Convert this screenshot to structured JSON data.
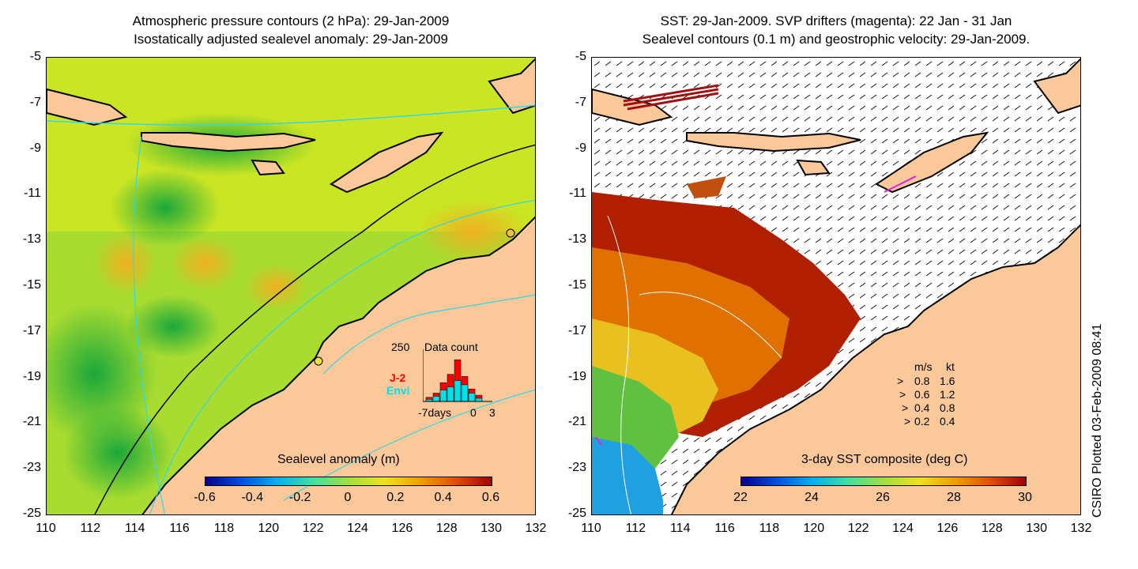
{
  "left_panel": {
    "title_line1": "Atmospheric pressure contours (2 hPa): 29-Jan-2009",
    "title_line2": "Isostatically adjusted sealevel anomaly: 29-Jan-2009",
    "colorbar_label": "Sealevel anomaly (m)",
    "colorbar_ticks": [
      "-0.6",
      "-0.4",
      "-0.2",
      "0",
      "0.2",
      "0.4",
      "0.6"
    ],
    "inset": {
      "title": "Data count",
      "max_label": "250",
      "series_a": "J-2",
      "series_b": "Envi",
      "x_left": "-7days",
      "x_mid": "0",
      "x_right": "3",
      "color_a": "#ff0000",
      "color_b": "#00e0e8",
      "bars_a": [
        20,
        40,
        90,
        130,
        200,
        120,
        60,
        30
      ],
      "bars_b": [
        10,
        25,
        55,
        70,
        100,
        80,
        40,
        15
      ],
      "bar_max": 250
    }
  },
  "right_panel": {
    "title_line1": "SST: 29-Jan-2009. SVP drifters (magenta): 22 Jan - 31 Jan",
    "title_line2": "Sealevel contours (0.1 m) and geostrophic velocity: 29-Jan-2009.",
    "colorbar_label": "3-day SST composite (deg C)",
    "colorbar_ticks": [
      "22",
      "24",
      "26",
      "28",
      "30"
    ],
    "legend": {
      "header_ms": "m/s",
      "header_kt": "kt",
      "rows": [
        {
          "ms": "0.8",
          "kt": "1.6"
        },
        {
          "ms": "0.6",
          "kt": "1.2"
        },
        {
          "ms": "0.4",
          "kt": "0.8"
        },
        {
          "ms": "0.2",
          "kt": "0.4"
        }
      ]
    }
  },
  "axes": {
    "y_ticks": [
      "-5",
      "-7",
      "-9",
      "-11",
      "-13",
      "-15",
      "-17",
      "-19",
      "-21",
      "-23",
      "-25"
    ],
    "x_ticks": [
      "110",
      "112",
      "114",
      "116",
      "118",
      "120",
      "122",
      "124",
      "126",
      "128",
      "130",
      "132"
    ]
  },
  "side_label": "CSIRO Plotted 03-Feb-2009 08:41",
  "colors": {
    "land": "#fbc89a",
    "cyan_contour": "#30d8e8",
    "sla_green": "#40c040",
    "sla_yellow": "#e8e820",
    "sst_red": "#b02000",
    "sst_orange": "#e07000"
  }
}
